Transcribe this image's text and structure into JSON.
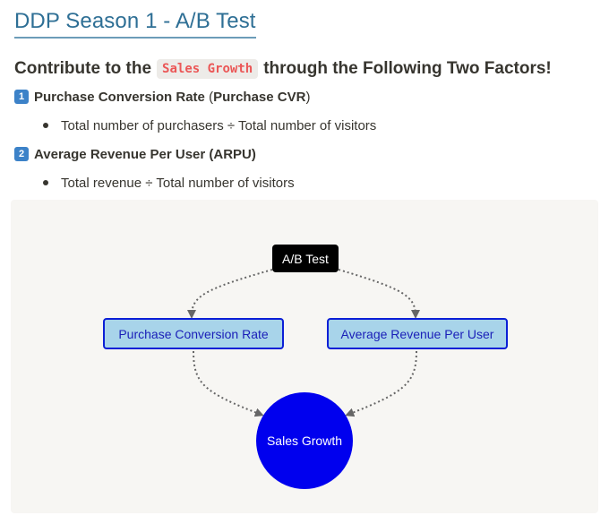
{
  "page": {
    "title": "DDP Season 1 - A/B Test",
    "subtitle_prefix": "Contribute to the",
    "subtitle_code": "Sales Growth",
    "subtitle_suffix": "through the Following Two Factors!"
  },
  "factors": [
    {
      "badge": "1",
      "name_bold": "Purchase Conversion Rate",
      "open_paren": " (",
      "abbr_bold": "Purchase CVR",
      "close_paren": ")",
      "bullet": "Total number of purchasers ÷ Total number of visitors"
    },
    {
      "badge": "2",
      "name_bold": "Average Revenue Per User (ARPU)",
      "bullet": "Total revenue ÷ Total number of visitors"
    }
  ],
  "diagram": {
    "top_node": "A/B Test",
    "left_node": "Purchase Conversion Rate",
    "right_node": "Average Revenue Per User",
    "bottom_node": "Sales Growth",
    "colors": {
      "top_node_bg": "#000000",
      "mid_node_bg": "#a8d4ea",
      "mid_node_border": "#0b1fd6",
      "bottom_node_bg": "#0000ee",
      "arrow": "#666666",
      "canvas_bg": "#f7f6f3"
    }
  }
}
